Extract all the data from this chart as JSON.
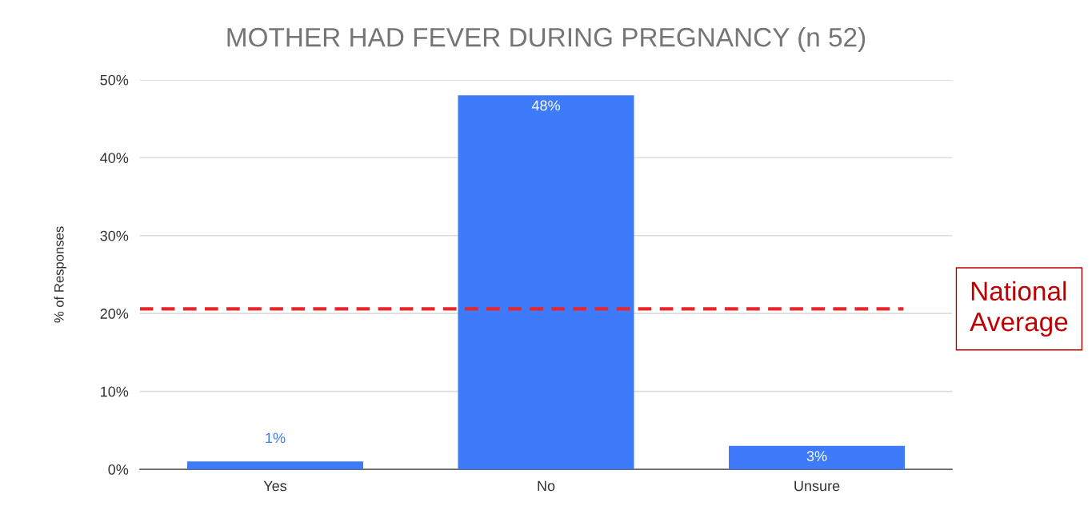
{
  "chart_data": {
    "type": "bar",
    "title": "MOTHER HAD FEVER DURING PREGNANCY (n 52)",
    "ylabel": "% of Responses",
    "categories": [
      "Yes",
      "No",
      "Unsure"
    ],
    "values": [
      1,
      48,
      3
    ],
    "value_labels": [
      "1%",
      "48%",
      "3%"
    ],
    "color": "#3d7bfa",
    "ylim": [
      0,
      50
    ],
    "yticks": [
      {
        "value": 0,
        "label": "0%"
      },
      {
        "value": 10,
        "label": "10%"
      },
      {
        "value": 20,
        "label": "20%"
      },
      {
        "value": 30,
        "label": "30%"
      },
      {
        "value": 40,
        "label": "40%"
      },
      {
        "value": 50,
        "label": "50%"
      }
    ],
    "grid": "y",
    "ref_lines": [
      {
        "axis": "y",
        "value": 20.6,
        "label": "National\nAverage",
        "color": "#e8262a",
        "line_style": "dashed"
      }
    ]
  }
}
